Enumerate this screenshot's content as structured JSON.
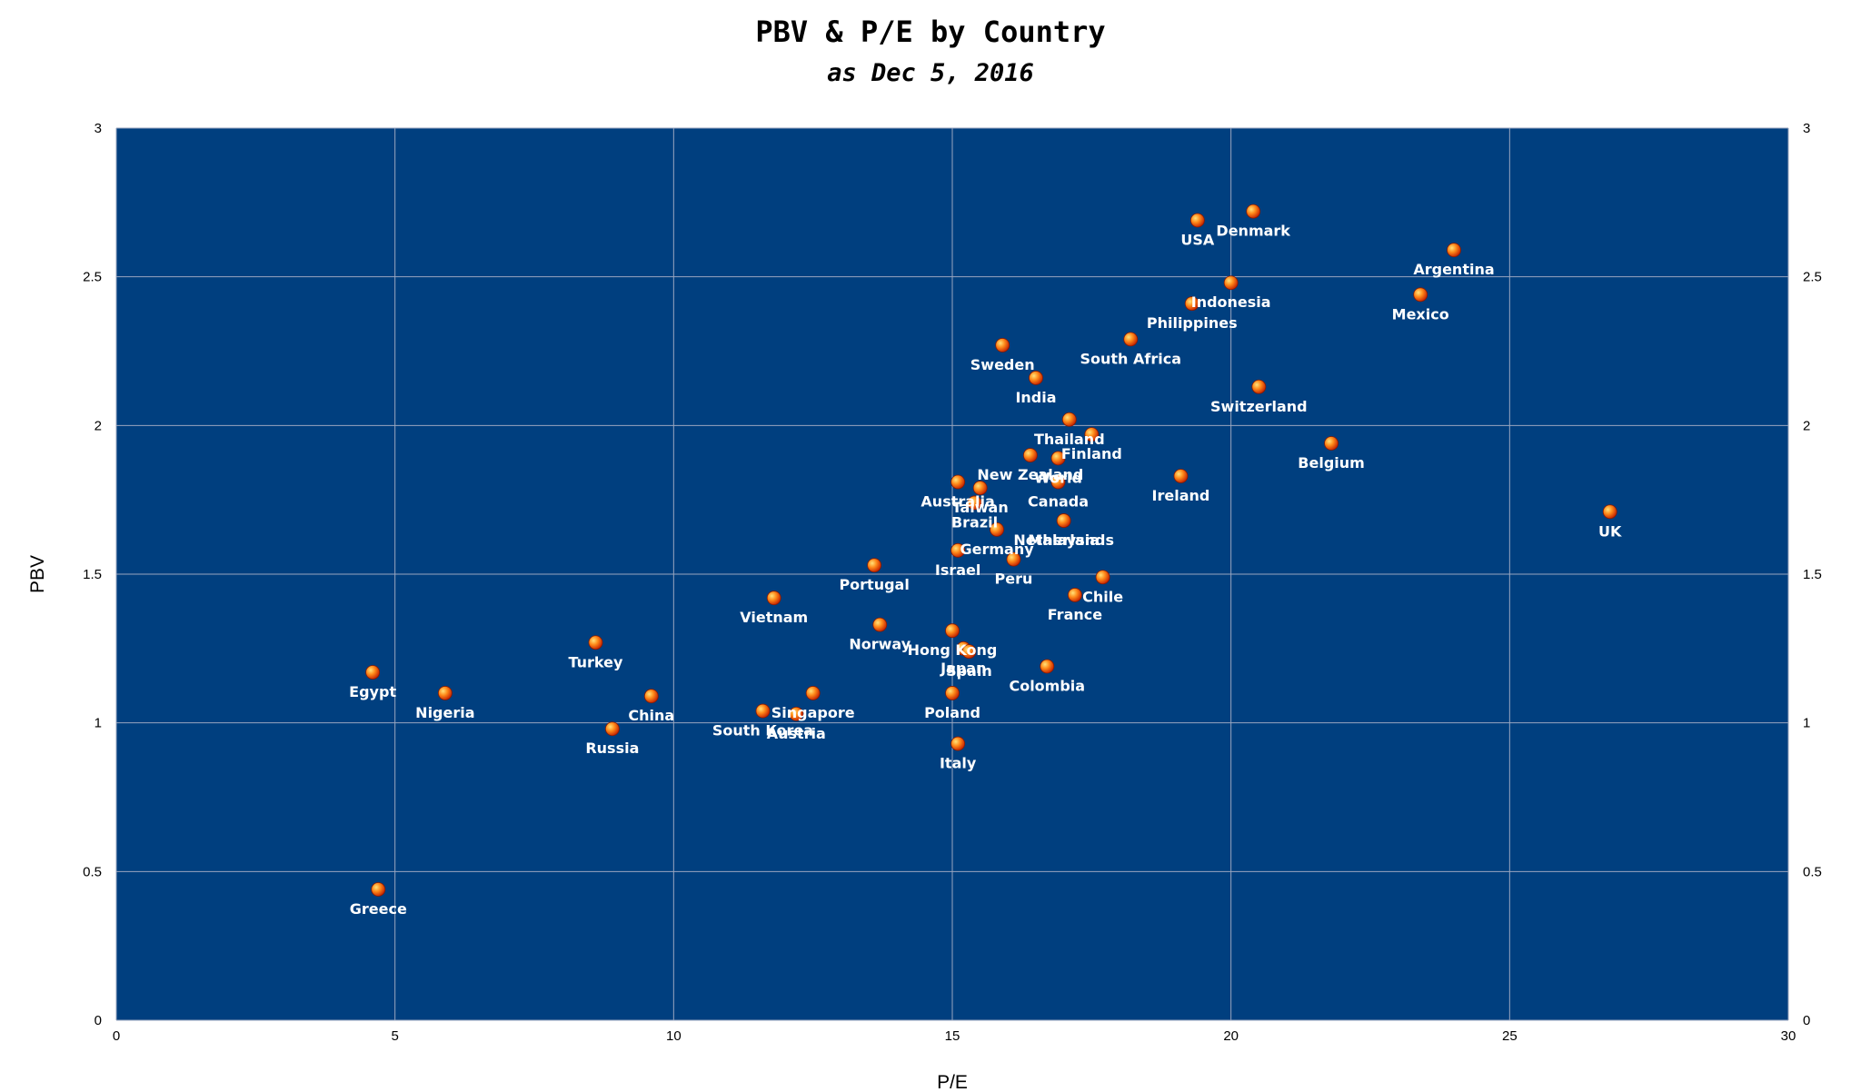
{
  "chart_data": {
    "type": "scatter",
    "title": "PBV & P/E by Country",
    "subtitle": "as Dec 5, 2016",
    "xlabel": "P/E",
    "ylabel": "PBV",
    "xlim": [
      0,
      30
    ],
    "ylim": [
      0,
      3
    ],
    "xticks": [
      0,
      5,
      10,
      15,
      20,
      25,
      30
    ],
    "yticks": [
      0,
      0.5,
      1,
      1.5,
      2,
      2.5,
      3
    ],
    "yticks_right": true,
    "grid": true,
    "plot_background": "#003f7f",
    "marker_color": "#ff7f00",
    "label_color": "#ffffff",
    "points": [
      {
        "label": "USA",
        "x": 19.4,
        "y": 2.69
      },
      {
        "label": "Denmark",
        "x": 20.4,
        "y": 2.72
      },
      {
        "label": "Argentina",
        "x": 24.0,
        "y": 2.59
      },
      {
        "label": "Indonesia",
        "x": 20.0,
        "y": 2.48
      },
      {
        "label": "Mexico",
        "x": 23.4,
        "y": 2.44
      },
      {
        "label": "Philippines",
        "x": 19.3,
        "y": 2.41
      },
      {
        "label": "South Africa",
        "x": 18.2,
        "y": 2.29
      },
      {
        "label": "Sweden",
        "x": 15.9,
        "y": 2.27
      },
      {
        "label": "India",
        "x": 16.5,
        "y": 2.16
      },
      {
        "label": "Switzerland",
        "x": 20.5,
        "y": 2.13
      },
      {
        "label": "Thailand",
        "x": 17.1,
        "y": 2.02
      },
      {
        "label": "Finland",
        "x": 17.5,
        "y": 1.97
      },
      {
        "label": "Belgium",
        "x": 21.8,
        "y": 1.94
      },
      {
        "label": "New Zealand",
        "x": 16.4,
        "y": 1.9
      },
      {
        "label": "World",
        "x": 16.9,
        "y": 1.89
      },
      {
        "label": "Ireland",
        "x": 19.1,
        "y": 1.83
      },
      {
        "label": "Australia",
        "x": 15.1,
        "y": 1.81
      },
      {
        "label": "Canada",
        "x": 16.9,
        "y": 1.81
      },
      {
        "label": "Taiwan",
        "x": 15.5,
        "y": 1.79
      },
      {
        "label": "Brazil",
        "x": 15.4,
        "y": 1.74
      },
      {
        "label": "Netherlands",
        "x": 17.0,
        "y": 1.68
      },
      {
        "label": "Malaysia",
        "x": 17.0,
        "y": 1.68
      },
      {
        "label": "UK",
        "x": 26.8,
        "y": 1.71
      },
      {
        "label": "Germany",
        "x": 15.8,
        "y": 1.65
      },
      {
        "label": "Israel",
        "x": 15.1,
        "y": 1.58
      },
      {
        "label": "Peru",
        "x": 16.1,
        "y": 1.55
      },
      {
        "label": "Portugal",
        "x": 13.6,
        "y": 1.53
      },
      {
        "label": "Chile",
        "x": 17.7,
        "y": 1.49
      },
      {
        "label": "France",
        "x": 17.2,
        "y": 1.43
      },
      {
        "label": "Vietnam",
        "x": 11.8,
        "y": 1.42
      },
      {
        "label": "Norway",
        "x": 13.7,
        "y": 1.33
      },
      {
        "label": "Hong Kong",
        "x": 15.0,
        "y": 1.31
      },
      {
        "label": "Japan",
        "x": 15.2,
        "y": 1.25
      },
      {
        "label": "Spain",
        "x": 15.3,
        "y": 1.24
      },
      {
        "label": "Turkey",
        "x": 8.6,
        "y": 1.27
      },
      {
        "label": "Colombia",
        "x": 16.7,
        "y": 1.19
      },
      {
        "label": "Egypt",
        "x": 4.6,
        "y": 1.17
      },
      {
        "label": "Nigeria",
        "x": 5.9,
        "y": 1.1
      },
      {
        "label": "Singapore",
        "x": 12.5,
        "y": 1.1
      },
      {
        "label": "Poland",
        "x": 15.0,
        "y": 1.1
      },
      {
        "label": "China",
        "x": 9.6,
        "y": 1.09
      },
      {
        "label": "South Korea",
        "x": 11.6,
        "y": 1.04
      },
      {
        "label": "Austria",
        "x": 12.2,
        "y": 1.03
      },
      {
        "label": "Russia",
        "x": 8.9,
        "y": 0.98
      },
      {
        "label": "Italy",
        "x": 15.1,
        "y": 0.93
      },
      {
        "label": "Greece",
        "x": 4.7,
        "y": 0.44
      }
    ]
  }
}
